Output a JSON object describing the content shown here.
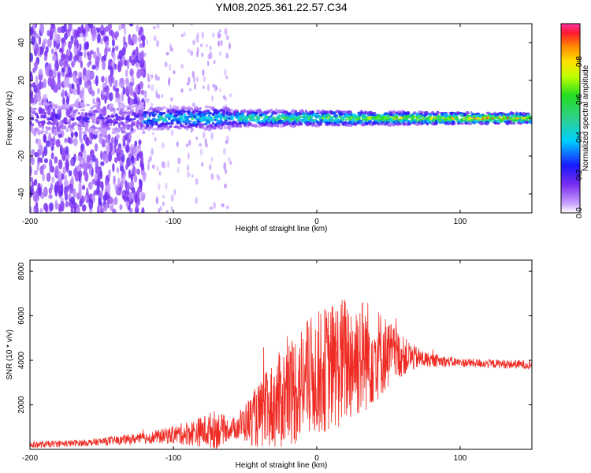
{
  "page": {
    "title": "YM08.2025.361.22.57.C34"
  },
  "colors": {
    "snr_line": "#ee2a22",
    "spec_low": "#7a2cf0",
    "spec_mid": "#2fd18a",
    "spec_high": "#ff1a2e"
  },
  "chart_data": [
    {
      "type": "heatmap",
      "name": "spectrogram",
      "title": "YM08.2025.361.22.57.C34",
      "xlabel": "Height of straight line (km)",
      "ylabel": "Frequency (Hz)",
      "xlim": [
        -200,
        150
      ],
      "ylim": [
        -50,
        50
      ],
      "x_ticks": [
        -200,
        -100,
        0,
        100
      ],
      "x_tick_labels": [
        "-200",
        "-100",
        "0",
        "100"
      ],
      "y_ticks": [
        -40,
        -20,
        0,
        20,
        40
      ],
      "y_tick_labels": [
        "-40",
        "-20",
        "0",
        "20",
        "40"
      ],
      "colorbar": {
        "label": "Normalized spectral amplitude",
        "range": [
          0.0,
          1.0
        ],
        "ticks": [
          0.0,
          0.2,
          0.4,
          0.6,
          0.8
        ],
        "tick_labels": [
          "0.0",
          "0.2",
          "0.4",
          "0.6",
          "0.8"
        ]
      },
      "description_values": {
        "signal_band_center_hz": 0,
        "noise_region_km": [
          -200,
          -120
        ],
        "sparse_region_km": [
          -120,
          -60
        ],
        "strong_signal_km": [
          -60,
          150
        ]
      }
    },
    {
      "type": "line",
      "name": "snr",
      "xlabel": "Height of straight line (km)",
      "ylabel": "SNR (10 * v/v)",
      "xlim": [
        -200,
        150
      ],
      "ylim": [
        0,
        8500
      ],
      "x_ticks": [
        -200,
        -100,
        0,
        100
      ],
      "x_tick_labels": [
        "-200",
        "-100",
        "0",
        "100"
      ],
      "y_ticks": [
        2000,
        4000,
        6000,
        8000
      ],
      "y_tick_labels": [
        "2000",
        "4000",
        "6000",
        "8000"
      ],
      "envelope": {
        "x": [
          -200,
          -160,
          -120,
          -100,
          -80,
          -70,
          -60,
          -50,
          -40,
          -30,
          -20,
          -10,
          0,
          10,
          20,
          30,
          40,
          50,
          60,
          70,
          80,
          90,
          100,
          120,
          150
        ],
        "baseline": [
          200,
          300,
          500,
          650,
          800,
          900,
          900,
          1200,
          1500,
          2000,
          2500,
          3000,
          3400,
          3700,
          4000,
          4200,
          4300,
          4300,
          4200,
          4100,
          4000,
          3950,
          3900,
          3850,
          3800
        ],
        "spread": [
          150,
          150,
          250,
          400,
          700,
          900,
          400,
          900,
          1500,
          2000,
          2500,
          2700,
          2800,
          2900,
          3000,
          2800,
          2300,
          1600,
          900,
          500,
          300,
          250,
          200,
          200,
          200
        ]
      }
    }
  ]
}
